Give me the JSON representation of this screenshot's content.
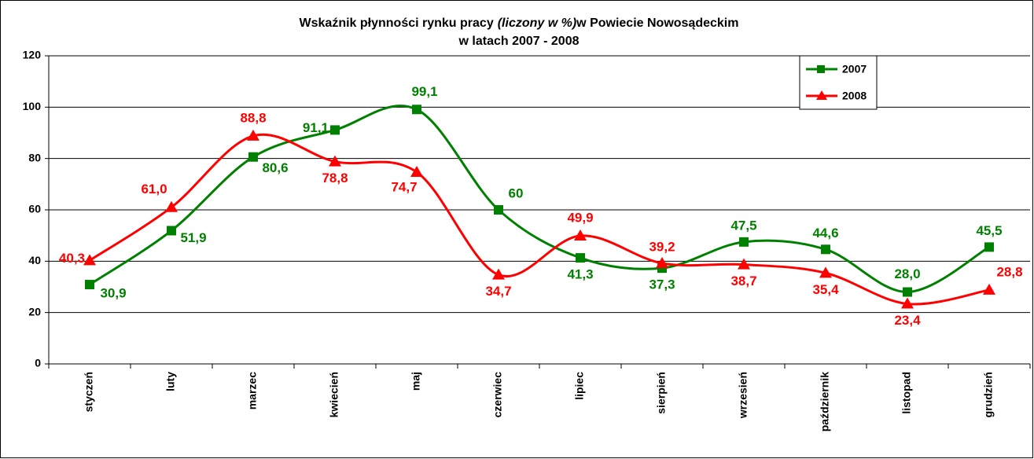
{
  "chart_data": {
    "type": "line",
    "title": [
      "Wskaźnik płynności rynku pracy",
      "(liczony w %)",
      "w Powiecie Nowosądeckim"
    ],
    "subtitle": "w latach 2007 - 2008",
    "categories": [
      "styczeń",
      "luty",
      "marzec",
      "kwiecień",
      "maj",
      "czerwiec",
      "lipiec",
      "sierpień",
      "wrzesień",
      "październik",
      "listopad",
      "grudzień"
    ],
    "series": [
      {
        "name": "2007",
        "color": "#008000",
        "marker": "square",
        "values": [
          30.9,
          51.9,
          80.6,
          91.1,
          99.1,
          60,
          41.3,
          37.3,
          47.5,
          44.6,
          28.0,
          45.5
        ],
        "value_labels": [
          "30,9",
          "51,9",
          "80,6",
          "91,1",
          "99,1",
          "60",
          "41,3",
          "37,3",
          "47,5",
          "44,6",
          "28,0",
          "45,5"
        ]
      },
      {
        "name": "2008",
        "color": "#ff0000",
        "marker": "triangle",
        "values": [
          40.3,
          61.0,
          88.8,
          78.8,
          74.7,
          34.7,
          49.9,
          39.2,
          38.7,
          35.4,
          23.4,
          28.8
        ],
        "value_labels": [
          "40,3",
          "61,0",
          "88,8",
          "78,8",
          "74,7",
          "34,7",
          "49,9",
          "39,2",
          "38,7",
          "35,4",
          "23,4",
          "28,8"
        ]
      }
    ],
    "ylim": [
      0,
      120
    ],
    "yticks": [
      0,
      20,
      40,
      60,
      80,
      100,
      120
    ],
    "grid": true,
    "smooth": true,
    "legend": "top-right"
  }
}
